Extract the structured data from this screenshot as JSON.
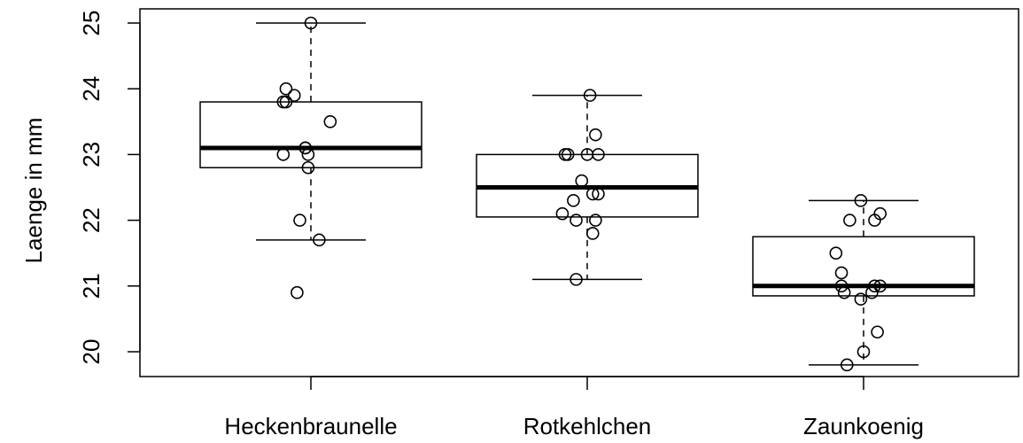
{
  "chart_data": {
    "type": "box",
    "title": "",
    "xlabel": "",
    "ylabel": "Laenge in mm",
    "ylim": [
      19.6,
      25.1
    ],
    "y_ticks": [
      "20",
      "21",
      "22",
      "23",
      "24",
      "25"
    ],
    "categories": [
      "Heckenbraunelle",
      "Rotkehlchen",
      "Zaunkoenig"
    ],
    "grid": false,
    "boxes": [
      {
        "category": "Heckenbraunelle",
        "whisker_low": 21.7,
        "q1": 22.8,
        "median": 23.1,
        "q3": 23.8,
        "whisker_high": 25.0,
        "outliers": [
          20.9
        ]
      },
      {
        "category": "Rotkehlchen",
        "whisker_low": 21.1,
        "q1": 22.05,
        "median": 22.5,
        "q3": 23.0,
        "whisker_high": 23.9,
        "outliers": []
      },
      {
        "category": "Zaunkoenig",
        "whisker_low": 19.8,
        "q1": 20.85,
        "median": 21.0,
        "q3": 21.75,
        "whisker_high": 22.3,
        "outliers": []
      }
    ],
    "points": [
      {
        "category": "Heckenbraunelle",
        "values": [
          25.0,
          24.0,
          23.9,
          23.8,
          23.8,
          23.5,
          23.1,
          23.1,
          23.0,
          23.0,
          22.8,
          22.0,
          21.7,
          20.9
        ],
        "jitter": [
          0.0,
          -0.09,
          -0.06,
          -0.09,
          -0.1,
          0.07,
          -0.02,
          -0.02,
          -0.1,
          -0.01,
          -0.01,
          -0.04,
          0.03,
          -0.05
        ]
      },
      {
        "category": "Rotkehlchen",
        "values": [
          23.9,
          23.3,
          23.0,
          23.0,
          23.0,
          23.0,
          22.6,
          22.4,
          22.4,
          22.3,
          22.1,
          22.0,
          22.0,
          21.8,
          21.1
        ],
        "jitter": [
          0.01,
          0.03,
          -0.08,
          -0.07,
          0.0,
          0.04,
          -0.02,
          0.02,
          0.04,
          -0.05,
          -0.09,
          -0.04,
          0.03,
          0.02,
          -0.04
        ]
      },
      {
        "category": "Zaunkoenig",
        "values": [
          22.3,
          22.1,
          22.0,
          22.0,
          21.5,
          21.2,
          21.0,
          21.0,
          21.0,
          20.9,
          20.9,
          20.8,
          20.3,
          20.0,
          19.8
        ],
        "jitter": [
          -0.01,
          0.06,
          -0.05,
          0.04,
          -0.1,
          -0.08,
          -0.08,
          0.04,
          0.06,
          -0.07,
          0.03,
          -0.01,
          0.05,
          0.0,
          -0.06
        ]
      }
    ]
  }
}
